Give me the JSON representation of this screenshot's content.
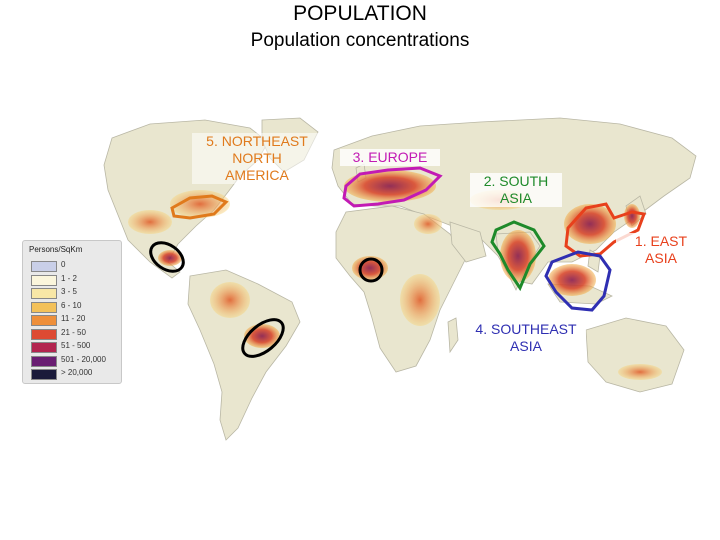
{
  "title": "POPULATION",
  "subtitle": "Population concentrations",
  "regions": [
    {
      "lines": [
        "1. EAST",
        "ASIA"
      ],
      "color": "#e8401c"
    },
    {
      "lines": [
        "2. SOUTH",
        "ASIA"
      ],
      "color": "#1e8a2a"
    },
    {
      "lines": [
        "3. EUROPE"
      ],
      "color": "#c21ab4"
    },
    {
      "lines": [
        "4. SOUTHEAST",
        "ASIA"
      ],
      "color": "#2f2fb2"
    },
    {
      "lines": [
        "5. NORTHEAST",
        "NORTH",
        "AMERICA"
      ],
      "color": "#e07a1c"
    }
  ],
  "legend": {
    "title": "Persons/SqKm",
    "items": [
      {
        "label": "0",
        "color": "#c9cfe8"
      },
      {
        "label": "1 - 2",
        "color": "#fbf6dc"
      },
      {
        "label": "3 - 5",
        "color": "#f8e7a6"
      },
      {
        "label": "6 - 10",
        "color": "#f3c15a"
      },
      {
        "label": "11 - 20",
        "color": "#ee8f3a"
      },
      {
        "label": "21 - 50",
        "color": "#dd4a33"
      },
      {
        "label": "51 - 500",
        "color": "#b3254f"
      },
      {
        "label": "501 - 20,000",
        "color": "#6a1e72"
      },
      {
        "label": "> 20,000",
        "color": "#1a1a3a"
      }
    ]
  },
  "colors": {
    "land": "#e9e6cf",
    "ocean": "#ffffff",
    "circle_outline": "#000000"
  }
}
